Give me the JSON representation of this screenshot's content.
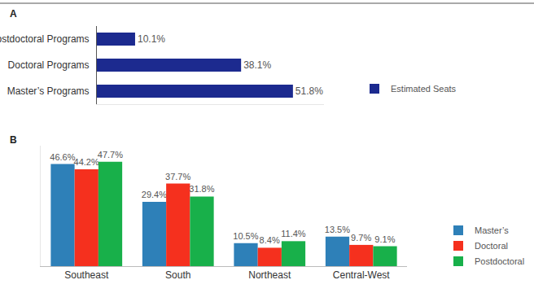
{
  "chart_data": [
    {
      "type": "bar",
      "title": "A",
      "orientation": "horizontal",
      "categories": [
        "Postdoctoral Programs",
        "Doctoral Programs",
        "Master’s Programs"
      ],
      "series": [
        {
          "name": "Estimated Seats",
          "color": "#1c2a8f",
          "values": [
            10.1,
            38.1,
            51.8
          ],
          "value_labels": [
            "10.1%",
            "38.1%",
            "51.8%"
          ]
        }
      ],
      "xlim": [
        0,
        60
      ],
      "xticks": [],
      "grid": false,
      "data_labels": true,
      "tick_labels": "y",
      "legend": "right"
    },
    {
      "type": "bar",
      "title": "B",
      "categories": [
        "Southeast",
        "South",
        "Northeast",
        "Central-West"
      ],
      "series": [
        {
          "name": "Master’s",
          "color": "#2e80b8",
          "values": [
            46.6,
            29.4,
            10.5,
            13.5
          ],
          "value_labels": [
            "46.6%",
            "29.4%",
            "10.5%",
            "13.5%"
          ]
        },
        {
          "name": "Doctoral",
          "color": "#f5301e",
          "values": [
            44.2,
            37.7,
            8.4,
            9.7
          ],
          "value_labels": [
            "44.2%",
            "37.7%",
            "8.4%",
            "9.7%"
          ]
        },
        {
          "name": "Postdoctoral",
          "color": "#18b04a",
          "values": [
            47.7,
            31.8,
            11.4,
            9.1
          ],
          "value_labels": [
            "47.7%",
            "31.8%",
            "11.4%",
            "9.1%"
          ]
        }
      ],
      "ylim": [
        0,
        55
      ],
      "yticks": [],
      "grid": false,
      "data_labels": true,
      "tick_labels": "x",
      "legend": "right"
    }
  ]
}
